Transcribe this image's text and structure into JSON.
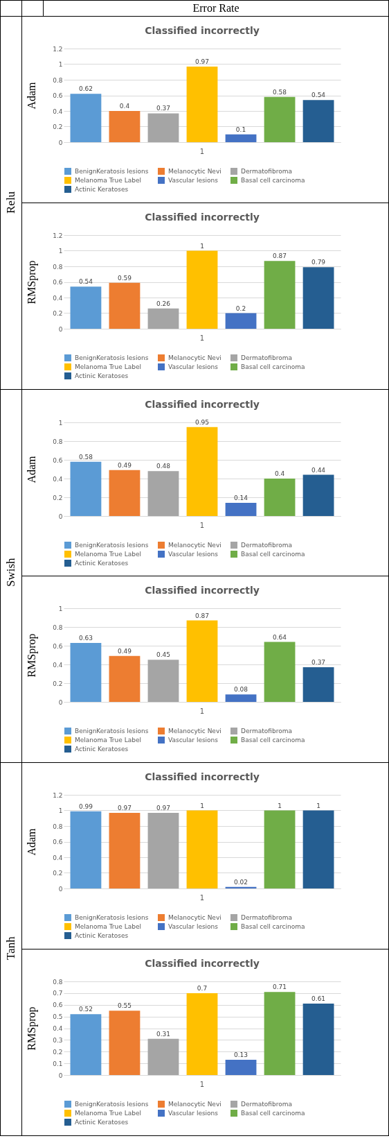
{
  "chart_data": [
    {
      "type": "bar",
      "title": "Classified incorrectly",
      "ylabel": "Adam",
      "annotations": [
        "Error Rate",
        "Relu"
      ],
      "categories": [
        "1"
      ],
      "ylim": [
        0,
        1.2
      ],
      "yticks": [
        0,
        0.2,
        0.4,
        0.6,
        0.8,
        1,
        1.2
      ],
      "grid": "y",
      "legend": "bottom",
      "data_labels": true,
      "series": [
        {
          "name": "BenignKeratosis lesions",
          "color": "#5b9bd5",
          "values": [
            0.62
          ]
        },
        {
          "name": "Melanocytic Nevi",
          "color": "#ed7d31",
          "values": [
            0.4
          ]
        },
        {
          "name": "Dermatofibroma",
          "color": "#a5a5a5",
          "values": [
            0.37
          ]
        },
        {
          "name": "Melanoma True Label",
          "color": "#ffc000",
          "values": [
            0.97
          ]
        },
        {
          "name": "Vascular lesions",
          "color": "#4472c4",
          "values": [
            0.1
          ]
        },
        {
          "name": "Basal cell carcinoma",
          "color": "#70ad47",
          "values": [
            0.58
          ]
        },
        {
          "name": "Actinic Keratoses",
          "color": "#255e91",
          "values": [
            0.54
          ]
        }
      ]
    },
    {
      "type": "bar",
      "title": "Classified incorrectly",
      "ylabel": "RMSprop",
      "categories": [
        "1"
      ],
      "ylim": [
        0,
        1.2
      ],
      "yticks": [
        0,
        0.2,
        0.4,
        0.6,
        0.8,
        1,
        1.2
      ],
      "grid": "y",
      "legend": "bottom",
      "data_labels": true,
      "series": [
        {
          "name": "BenignKeratosis lesions",
          "color": "#5b9bd5",
          "values": [
            0.54
          ]
        },
        {
          "name": "Melanocytic Nevi",
          "color": "#ed7d31",
          "values": [
            0.59
          ]
        },
        {
          "name": "Dermatofibroma",
          "color": "#a5a5a5",
          "values": [
            0.26
          ]
        },
        {
          "name": "Melanoma True Label",
          "color": "#ffc000",
          "values": [
            1
          ]
        },
        {
          "name": "Vascular lesions",
          "color": "#4472c4",
          "values": [
            0.2
          ]
        },
        {
          "name": "Basal cell carcinoma",
          "color": "#70ad47",
          "values": [
            0.87
          ]
        },
        {
          "name": "Actinic Keratoses",
          "color": "#255e91",
          "values": [
            0.79
          ]
        }
      ]
    },
    {
      "type": "bar",
      "title": "Classified incorrectly",
      "ylabel": "Adam",
      "annotations": [
        "Swish"
      ],
      "categories": [
        "1"
      ],
      "ylim": [
        0,
        1
      ],
      "yticks": [
        0,
        0.2,
        0.4,
        0.6,
        0.8,
        1
      ],
      "grid": "y",
      "legend": "bottom",
      "data_labels": true,
      "series": [
        {
          "name": "BenignKeratosis lesions",
          "color": "#5b9bd5",
          "values": [
            0.58
          ]
        },
        {
          "name": "Melanocytic Nevi",
          "color": "#ed7d31",
          "values": [
            0.49
          ]
        },
        {
          "name": "Dermatofibroma",
          "color": "#a5a5a5",
          "values": [
            0.48
          ]
        },
        {
          "name": "Melanoma True Label",
          "color": "#ffc000",
          "values": [
            0.95
          ]
        },
        {
          "name": "Vascular lesions",
          "color": "#4472c4",
          "values": [
            0.14
          ]
        },
        {
          "name": "Basal cell carcinoma",
          "color": "#70ad47",
          "values": [
            0.4
          ]
        },
        {
          "name": "Actinic Keratoses",
          "color": "#255e91",
          "values": [
            0.44
          ]
        }
      ]
    },
    {
      "type": "bar",
      "title": "Classified incorrectly",
      "ylabel": "RMSprop",
      "categories": [
        "1"
      ],
      "ylim": [
        0,
        1
      ],
      "yticks": [
        0,
        0.2,
        0.4,
        0.6,
        0.8,
        1
      ],
      "grid": "y",
      "legend": "bottom",
      "data_labels": true,
      "series": [
        {
          "name": "BenignKeratosis lesions",
          "color": "#5b9bd5",
          "values": [
            0.63
          ]
        },
        {
          "name": "Melanocytic Nevi",
          "color": "#ed7d31",
          "values": [
            0.49
          ]
        },
        {
          "name": "Dermatofibroma",
          "color": "#a5a5a5",
          "values": [
            0.45
          ]
        },
        {
          "name": "Melanoma True Label",
          "color": "#ffc000",
          "values": [
            0.87
          ]
        },
        {
          "name": "Vascular lesions",
          "color": "#4472c4",
          "values": [
            0.08
          ]
        },
        {
          "name": "Basal cell carcinoma",
          "color": "#70ad47",
          "values": [
            0.64
          ]
        },
        {
          "name": "Actinic Keratoses",
          "color": "#255e91",
          "values": [
            0.37
          ]
        }
      ]
    },
    {
      "type": "bar",
      "title": "Classified incorrectly",
      "ylabel": "Adam",
      "annotations": [
        "Tanh"
      ],
      "categories": [
        "1"
      ],
      "ylim": [
        0,
        1.2
      ],
      "yticks": [
        0,
        0.2,
        0.4,
        0.6,
        0.8,
        1,
        1.2
      ],
      "grid": "y",
      "legend": "bottom",
      "data_labels": true,
      "series": [
        {
          "name": "BenignKeratosis lesions",
          "color": "#5b9bd5",
          "values": [
            0.99
          ]
        },
        {
          "name": "Melanocytic Nevi",
          "color": "#ed7d31",
          "values": [
            0.97
          ]
        },
        {
          "name": "Dermatofibroma",
          "color": "#a5a5a5",
          "values": [
            0.97
          ]
        },
        {
          "name": "Melanoma True Label",
          "color": "#ffc000",
          "values": [
            1
          ]
        },
        {
          "name": "Vascular lesions",
          "color": "#4472c4",
          "values": [
            0.02
          ]
        },
        {
          "name": "Basal cell carcinoma",
          "color": "#70ad47",
          "values": [
            1
          ]
        },
        {
          "name": "Actinic Keratoses",
          "color": "#255e91",
          "values": [
            1
          ]
        }
      ]
    },
    {
      "type": "bar",
      "title": "Classified incorrectly",
      "ylabel": "RMSprop",
      "categories": [
        "1"
      ],
      "ylim": [
        0,
        0.8
      ],
      "yticks": [
        0,
        0.1,
        0.2,
        0.3,
        0.4,
        0.5,
        0.6,
        0.7,
        0.8
      ],
      "grid": "y",
      "legend": "bottom",
      "data_labels": true,
      "series": [
        {
          "name": "BenignKeratosis lesions",
          "color": "#5b9bd5",
          "values": [
            0.52
          ]
        },
        {
          "name": "Melanocytic Nevi",
          "color": "#ed7d31",
          "values": [
            0.55
          ]
        },
        {
          "name": "Dermatofibroma",
          "color": "#a5a5a5",
          "values": [
            0.31
          ]
        },
        {
          "name": "Melanoma True Label",
          "color": "#ffc000",
          "values": [
            0.7
          ]
        },
        {
          "name": "Vascular lesions",
          "color": "#4472c4",
          "values": [
            0.13
          ]
        },
        {
          "name": "Basal cell carcinoma",
          "color": "#70ad47",
          "values": [
            0.71
          ]
        },
        {
          "name": "Actinic Keratoses",
          "color": "#255e91",
          "values": [
            0.61
          ]
        }
      ]
    }
  ]
}
